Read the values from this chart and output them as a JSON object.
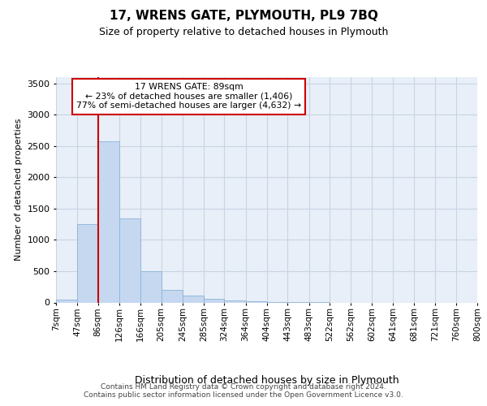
{
  "title": "17, WRENS GATE, PLYMOUTH, PL9 7BQ",
  "subtitle": "Size of property relative to detached houses in Plymouth",
  "xlabel": "Distribution of detached houses by size in Plymouth",
  "ylabel": "Number of detached properties",
  "footer_line1": "Contains HM Land Registry data © Crown copyright and database right 2024.",
  "footer_line2": "Contains public sector information licensed under the Open Government Licence v3.0.",
  "bins": [
    "7sqm",
    "47sqm",
    "86sqm",
    "126sqm",
    "166sqm",
    "205sqm",
    "245sqm",
    "285sqm",
    "324sqm",
    "364sqm",
    "404sqm",
    "443sqm",
    "483sqm",
    "522sqm",
    "562sqm",
    "602sqm",
    "641sqm",
    "681sqm",
    "721sqm",
    "760sqm",
    "800sqm"
  ],
  "bin_edges": [
    7,
    47,
    86,
    126,
    166,
    205,
    245,
    285,
    324,
    364,
    404,
    443,
    483,
    522,
    562,
    602,
    641,
    681,
    721,
    760,
    800
  ],
  "values": [
    50,
    1250,
    2580,
    1340,
    500,
    200,
    110,
    55,
    30,
    15,
    5,
    5,
    2,
    0,
    0,
    0,
    0,
    0,
    0,
    0
  ],
  "bar_color": "#c5d8f0",
  "bar_edge_color": "#8ab4d8",
  "grid_color": "#c8d4e4",
  "background_color": "#e8eff8",
  "property_line_x": 86,
  "property_line_color": "#cc0000",
  "annotation_line1": "17 WRENS GATE: 89sqm",
  "annotation_line2": "← 23% of detached houses are smaller (1,406)",
  "annotation_line3": "77% of semi-detached houses are larger (4,632) →",
  "annotation_box_facecolor": "#ffffff",
  "annotation_box_edgecolor": "#cc0000",
  "ylim": [
    0,
    3600
  ],
  "yticks": [
    0,
    500,
    1000,
    1500,
    2000,
    2500,
    3000,
    3500
  ],
  "title_fontsize": 11,
  "subtitle_fontsize": 9,
  "ylabel_fontsize": 8,
  "xlabel_fontsize": 9,
  "tick_fontsize": 8,
  "xtick_fontsize": 7.5,
  "footer_fontsize": 6.5
}
